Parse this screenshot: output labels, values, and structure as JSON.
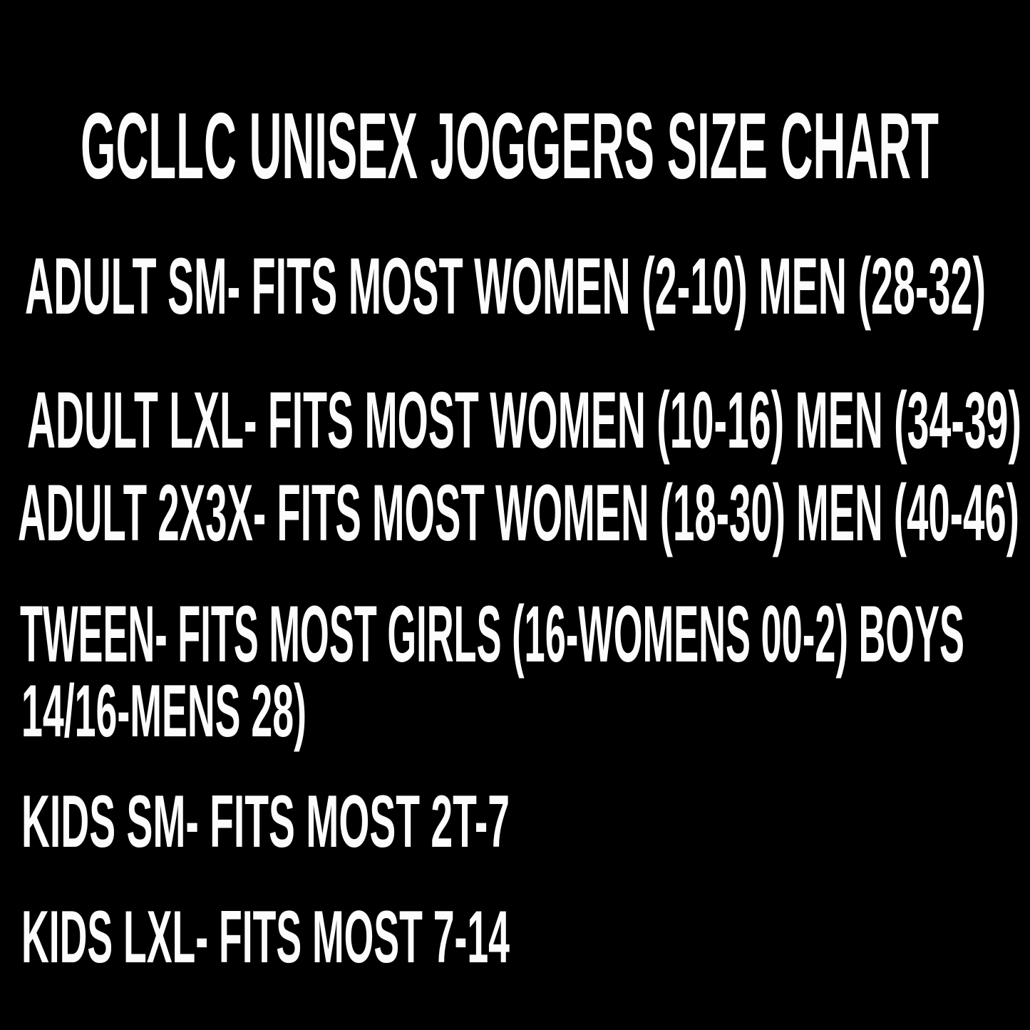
{
  "page": {
    "background_color": "#000000",
    "text_color": "#fcfcfc"
  },
  "size_chart": {
    "title": "GCLLC UNISEX JOGGERS SIZE CHART",
    "display_lines": [
      "ADULT SM- FITS MOST WOMEN (2-10) MEN (28-32)",
      "ADULT LXL- FITS MOST WOMEN (10-16) MEN (34-39)",
      "ADULT 2X3X- FITS MOST WOMEN (18-30) MEN (40-46)",
      "TWEEN- FITS MOST GIRLS (16-WOMENS 00-2) BOYS",
      "14/16-MENS 28)",
      "KIDS SM- FITS MOST 2T-7",
      "KIDS LXL- FITS MOST 7-14"
    ],
    "entries": [
      {
        "size": "ADULT SM",
        "fits": "FITS MOST WOMEN (2-10) MEN (28-32)"
      },
      {
        "size": "ADULT LXL",
        "fits": "FITS MOST WOMEN (10-16) MEN (34-39)"
      },
      {
        "size": "ADULT 2X3X",
        "fits": "FITS MOST WOMEN (18-30) MEN (40-46)"
      },
      {
        "size": "TWEEN",
        "fits": "FITS MOST GIRLS (16-WOMENS 00-2) BOYS 14/16-MENS 28)"
      },
      {
        "size": "KIDS SM",
        "fits": "FITS MOST 2T-7"
      },
      {
        "size": "KIDS LXL",
        "fits": "FITS MOST 7-14"
      }
    ]
  }
}
